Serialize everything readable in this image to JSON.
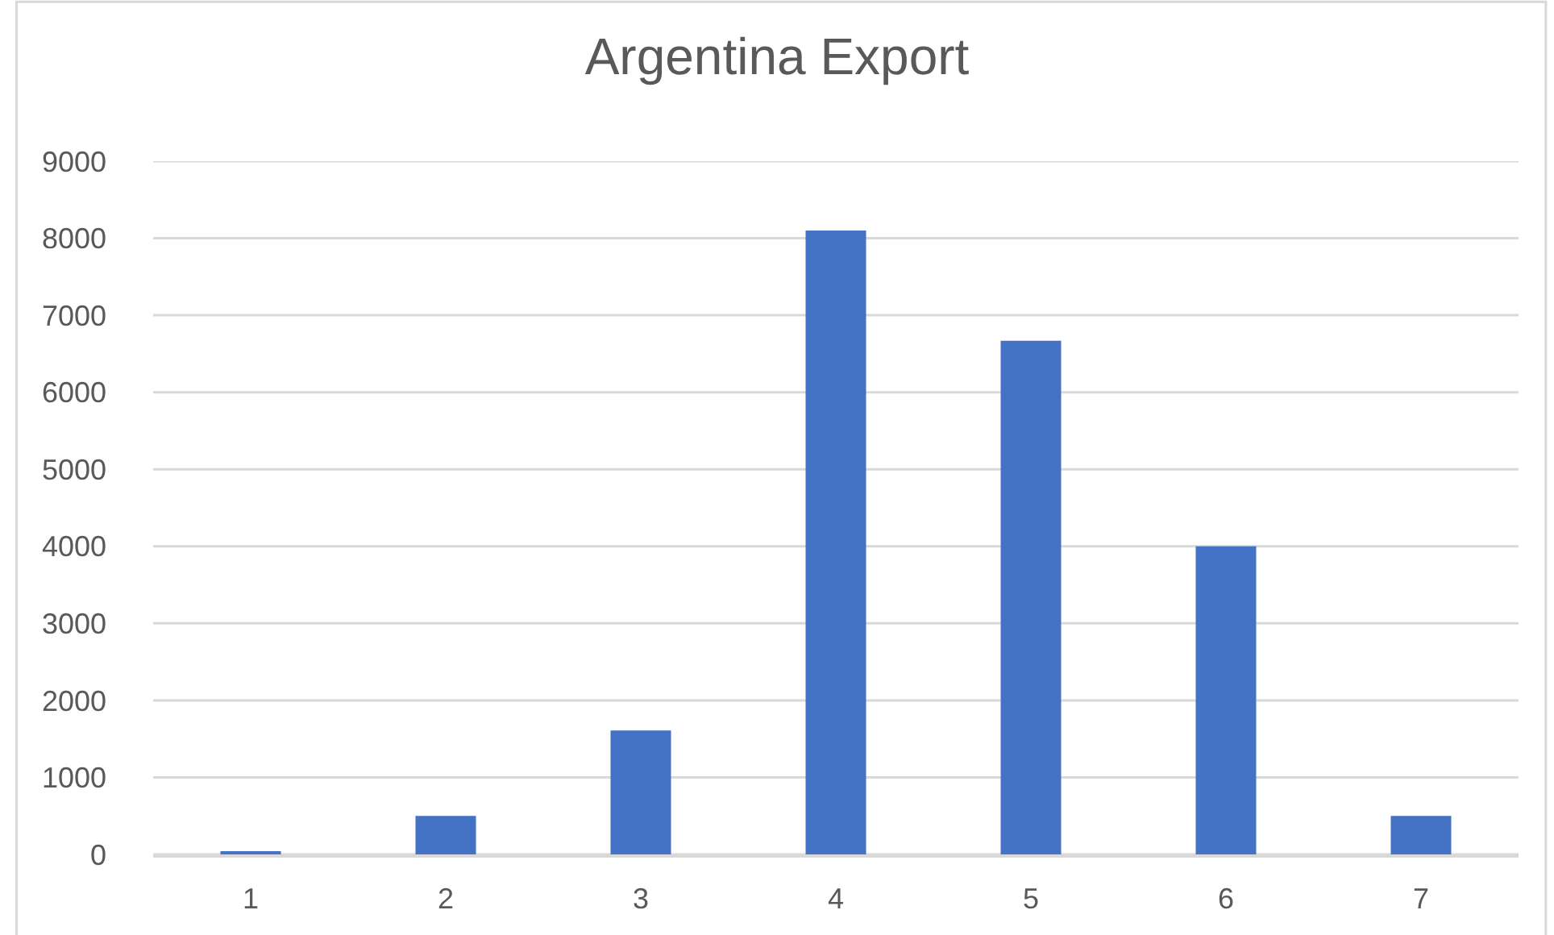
{
  "chart_data": {
    "type": "bar",
    "title": "Argentina Export",
    "categories": [
      "1",
      "2",
      "3",
      "4",
      "5",
      "6",
      "7"
    ],
    "values": [
      30,
      500,
      1610,
      8100,
      6670,
      4000,
      500
    ],
    "color": "#4472c4",
    "ylim": [
      0,
      9000
    ],
    "yticks": [
      0,
      1000,
      2000,
      3000,
      4000,
      5000,
      6000,
      7000,
      8000,
      9000
    ],
    "grid": "y"
  }
}
